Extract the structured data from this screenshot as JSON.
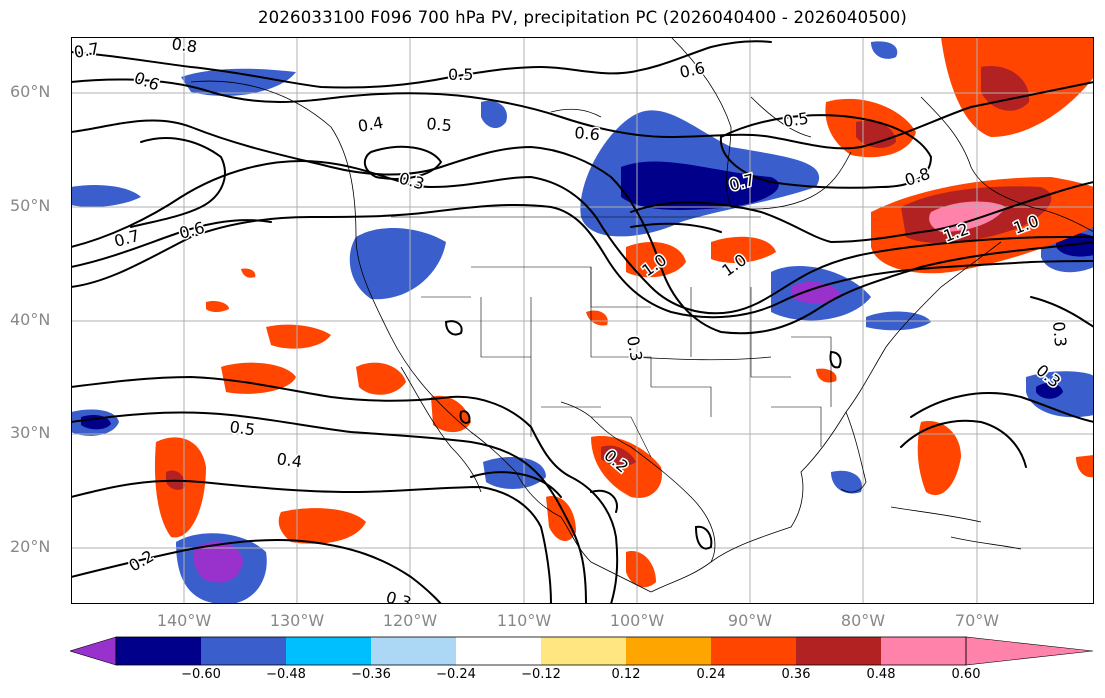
{
  "title": "2026033100 F096 700 hPa PV, precipitation PC (2026040400 - 2026040500)",
  "axes": {
    "lat_labels": [
      "60°N",
      "50°N",
      "40°N",
      "30°N",
      "20°N"
    ],
    "lon_labels": [
      "140°W",
      "130°W",
      "120°W",
      "110°W",
      "100°W",
      "90°W",
      "80°W",
      "70°W"
    ]
  },
  "contour_labels": [
    "0.7",
    "0.8",
    "0.6",
    "0.5",
    "0.4",
    "0.3",
    "0.6",
    "0.5",
    "0.6",
    "0.5",
    "0.7",
    "0.8",
    "0.7",
    "0.6",
    "1.0",
    "1.0",
    "1.2",
    "1.0",
    "0.3",
    "0.5",
    "0.4",
    "0.2",
    "0.2",
    "0.3",
    "0.3",
    "0.3"
  ],
  "colorbar": {
    "ticks": [
      "−0.60",
      "−0.48",
      "−0.36",
      "−0.24",
      "−0.12",
      "0.12",
      "0.24",
      "0.36",
      "0.48",
      "0.60"
    ],
    "colors": [
      "#9932cc",
      "#00008b",
      "#3a5fcd",
      "#00bfff",
      "#add8f5",
      "#ffffff",
      "#ffe680",
      "#ffa500",
      "#ff4500",
      "#b22222",
      "#ff82ab"
    ]
  }
}
